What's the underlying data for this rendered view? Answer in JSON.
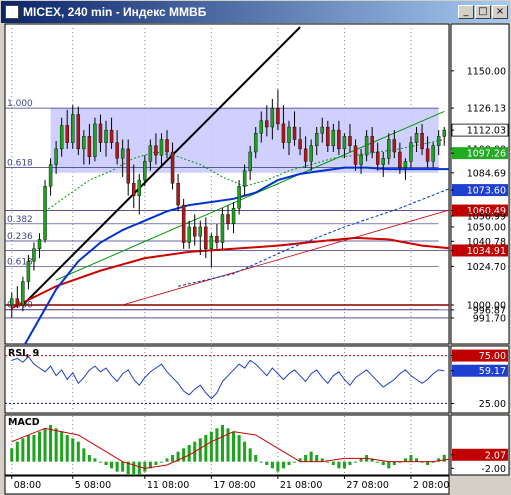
{
  "window": {
    "title": "MICEX, 240 min - Индекс ММВБ",
    "min_glyph": "_",
    "max_glyph": "□",
    "close_glyph": "×"
  },
  "colors": {
    "bull": "#1fa31f",
    "bear": "#b01919",
    "fib_zone": "#c8c8ff",
    "ma_blue": "#0033cc",
    "ma_red": "#cc0000",
    "trend_black": "#000000",
    "trend_green": "#009900"
  },
  "chart_data": [
    {
      "name": "price",
      "type": "candlestick",
      "ylim": [
        975,
        1180
      ],
      "y_ticks": [
        {
          "value": 1150.0,
          "label": "1150.00",
          "style": "plain"
        },
        {
          "value": 1126.13,
          "label": "1126.13",
          "style": "plain"
        },
        {
          "value": 1112.03,
          "label": "1112.03",
          "style": "white"
        },
        {
          "value": 1100.0,
          "label": "1100.00",
          "style": "plain"
        },
        {
          "value": 1097.26,
          "label": "1097.26",
          "style": "green"
        },
        {
          "value": 1084.69,
          "label": "1084.69",
          "style": "plain"
        },
        {
          "value": 1073.6,
          "label": "1073.60",
          "style": "blue"
        },
        {
          "value": 1060.49,
          "label": "1060.49",
          "style": "red"
        },
        {
          "value": 1056.99,
          "label": "1056.99",
          "style": "plain"
        },
        {
          "value": 1050.0,
          "label": "1050.00",
          "style": "plain"
        },
        {
          "value": 1040.78,
          "label": "1040.78",
          "style": "plain"
        },
        {
          "value": 1034.91,
          "label": "1034.91",
          "style": "red"
        },
        {
          "value": 1024.7,
          "label": "1024.70",
          "style": "plain"
        },
        {
          "value": 1000.0,
          "label": "1000.00",
          "style": "plain"
        },
        {
          "value": 996.87,
          "label": "996.87",
          "style": "plain"
        },
        {
          "value": 991.7,
          "label": "991.70",
          "style": "plain"
        }
      ],
      "fib_levels": [
        {
          "label": "1.000",
          "value": 1126.13
        },
        {
          "label": "0.618",
          "value": 1088
        },
        {
          "label": "0.382",
          "value": 1052
        },
        {
          "label": "0.236",
          "value": 1041
        },
        {
          "label": "0.000",
          "value": 997
        },
        {
          "label": "0.618",
          "value": 1024.7
        }
      ],
      "fib_box": {
        "x_start": 7,
        "x_end": 77,
        "top": 1126.13,
        "bottom": 1084.69
      },
      "x_labels": [
        {
          "index": 0,
          "label": "08:00"
        },
        {
          "index": 11,
          "label": "5 08:00"
        },
        {
          "index": 24,
          "label": "11 08:00"
        },
        {
          "index": 36,
          "label": "17 08:00"
        },
        {
          "index": 48,
          "label": "21 08:00"
        },
        {
          "index": 60,
          "label": "27 08:00"
        },
        {
          "index": 72,
          "label": "2 08:00"
        }
      ],
      "ohlc": [
        [
          1000,
          1008,
          992,
          1004
        ],
        [
          1004,
          1012,
          998,
          1000
        ],
        [
          1000,
          1018,
          996,
          1015
        ],
        [
          1015,
          1032,
          1010,
          1028
        ],
        [
          1028,
          1040,
          1022,
          1036
        ],
        [
          1036,
          1046,
          1030,
          1042
        ],
        [
          1042,
          1080,
          1040,
          1076
        ],
        [
          1076,
          1094,
          1070,
          1090
        ],
        [
          1090,
          1105,
          1084,
          1100
        ],
        [
          1100,
          1120,
          1095,
          1115
        ],
        [
          1115,
          1125,
          1100,
          1104
        ],
        [
          1104,
          1128,
          1100,
          1122
        ],
        [
          1122,
          1127,
          1096,
          1100
        ],
        [
          1100,
          1112,
          1090,
          1108
        ],
        [
          1108,
          1116,
          1090,
          1095
        ],
        [
          1095,
          1120,
          1092,
          1116
        ],
        [
          1116,
          1122,
          1098,
          1104
        ],
        [
          1104,
          1118,
          1095,
          1112
        ],
        [
          1112,
          1120,
          1100,
          1104
        ],
        [
          1104,
          1112,
          1090,
          1094
        ],
        [
          1094,
          1106,
          1082,
          1100
        ],
        [
          1100,
          1106,
          1070,
          1078
        ],
        [
          1078,
          1090,
          1062,
          1070
        ],
        [
          1070,
          1084,
          1058,
          1080
        ],
        [
          1080,
          1096,
          1076,
          1092
        ],
        [
          1092,
          1106,
          1086,
          1102
        ],
        [
          1102,
          1110,
          1090,
          1096
        ],
        [
          1096,
          1110,
          1088,
          1106
        ],
        [
          1106,
          1112,
          1094,
          1098
        ],
        [
          1098,
          1104,
          1074,
          1078
        ],
        [
          1078,
          1084,
          1060,
          1064
        ],
        [
          1064,
          1068,
          1036,
          1040
        ],
        [
          1040,
          1054,
          1036,
          1050
        ],
        [
          1050,
          1058,
          1038,
          1044
        ],
        [
          1044,
          1054,
          1032,
          1050
        ],
        [
          1050,
          1056,
          1030,
          1036
        ],
        [
          1036,
          1046,
          1024,
          1044
        ],
        [
          1044,
          1052,
          1036,
          1040
        ],
        [
          1040,
          1062,
          1036,
          1058
        ],
        [
          1058,
          1064,
          1048,
          1052
        ],
        [
          1052,
          1066,
          1046,
          1062
        ],
        [
          1062,
          1080,
          1058,
          1076
        ],
        [
          1076,
          1090,
          1070,
          1086
        ],
        [
          1086,
          1102,
          1080,
          1098
        ],
        [
          1098,
          1114,
          1094,
          1110
        ],
        [
          1110,
          1124,
          1104,
          1118
        ],
        [
          1118,
          1128,
          1108,
          1114
        ],
        [
          1114,
          1132,
          1106,
          1126
        ],
        [
          1126,
          1138,
          1112,
          1116
        ],
        [
          1116,
          1128,
          1100,
          1104
        ],
        [
          1104,
          1118,
          1096,
          1114
        ],
        [
          1114,
          1124,
          1102,
          1106
        ],
        [
          1106,
          1114,
          1096,
          1100
        ],
        [
          1100,
          1108,
          1088,
          1092
        ],
        [
          1092,
          1106,
          1086,
          1102
        ],
        [
          1102,
          1114,
          1096,
          1110
        ],
        [
          1110,
          1120,
          1104,
          1114
        ],
        [
          1114,
          1118,
          1098,
          1102
        ],
        [
          1102,
          1116,
          1098,
          1112
        ],
        [
          1112,
          1118,
          1096,
          1100
        ],
        [
          1100,
          1110,
          1094,
          1108
        ],
        [
          1108,
          1116,
          1098,
          1102
        ],
        [
          1102,
          1106,
          1086,
          1090
        ],
        [
          1090,
          1100,
          1084,
          1096
        ],
        [
          1096,
          1112,
          1092,
          1108
        ],
        [
          1108,
          1114,
          1094,
          1098
        ],
        [
          1098,
          1104,
          1086,
          1090
        ],
        [
          1090,
          1098,
          1082,
          1094
        ],
        [
          1094,
          1110,
          1090,
          1106
        ],
        [
          1106,
          1112,
          1094,
          1098
        ],
        [
          1098,
          1104,
          1084,
          1088
        ],
        [
          1088,
          1094,
          1080,
          1092
        ],
        [
          1092,
          1108,
          1088,
          1104
        ],
        [
          1104,
          1114,
          1098,
          1110
        ],
        [
          1110,
          1116,
          1096,
          1100
        ],
        [
          1100,
          1108,
          1088,
          1092
        ],
        [
          1092,
          1104,
          1088,
          1102
        ],
        [
          1102,
          1112,
          1096,
          1108
        ],
        [
          1108,
          1114,
          1102,
          1112
        ]
      ],
      "ma_blue": [
        [
          0,
          960
        ],
        [
          4,
          985
        ],
        [
          8,
          1010
        ],
        [
          12,
          1028
        ],
        [
          16,
          1040
        ],
        [
          20,
          1048
        ],
        [
          24,
          1054
        ],
        [
          28,
          1060
        ],
        [
          32,
          1064
        ],
        [
          36,
          1066
        ],
        [
          40,
          1068
        ],
        [
          44,
          1072
        ],
        [
          48,
          1080
        ],
        [
          52,
          1084
        ],
        [
          56,
          1086
        ],
        [
          60,
          1088
        ],
        [
          64,
          1088
        ],
        [
          68,
          1087
        ],
        [
          72,
          1087
        ],
        [
          76,
          1087
        ],
        [
          80,
          1087
        ]
      ],
      "ma_red": [
        [
          0,
          998
        ],
        [
          8,
          1012
        ],
        [
          16,
          1022
        ],
        [
          24,
          1030
        ],
        [
          32,
          1034
        ],
        [
          40,
          1036
        ],
        [
          48,
          1038
        ],
        [
          56,
          1041
        ],
        [
          62,
          1043
        ],
        [
          68,
          1042
        ],
        [
          74,
          1038
        ],
        [
          80,
          1036
        ]
      ],
      "ma_green_dotted": [
        [
          6,
          1060
        ],
        [
          10,
          1070
        ],
        [
          14,
          1080
        ],
        [
          18,
          1086
        ],
        [
          22,
          1094
        ],
        [
          26,
          1098
        ],
        [
          30,
          1095
        ],
        [
          34,
          1090
        ],
        [
          38,
          1082
        ],
        [
          42,
          1076
        ],
        [
          46,
          1080
        ],
        [
          50,
          1086
        ],
        [
          54,
          1090
        ],
        [
          58,
          1094
        ],
        [
          62,
          1096
        ],
        [
          66,
          1098
        ],
        [
          70,
          1100
        ],
        [
          74,
          1103
        ],
        [
          78,
          1106
        ]
      ],
      "envelope_blue_dashed": [
        [
          30,
          1012
        ],
        [
          40,
          1020
        ],
        [
          50,
          1036
        ],
        [
          60,
          1050
        ],
        [
          70,
          1062
        ],
        [
          80,
          1076
        ]
      ],
      "trend_black": [
        [
          2,
          1000
        ],
        [
          52,
          1178
        ]
      ],
      "trend_green": [
        [
          8,
          1016
        ],
        [
          78,
          1124
        ]
      ],
      "trend_red_thin": [
        [
          20,
          1000
        ],
        [
          80,
          1062
        ]
      ]
    },
    {
      "name": "rsi",
      "type": "line",
      "label": "RSI, 9",
      "ylim": [
        15,
        85
      ],
      "y_ticks": [
        {
          "value": 75.0,
          "label": "75.00",
          "style": "red"
        },
        {
          "value": 59.17,
          "label": "59.17",
          "style": "blue"
        },
        {
          "value": 25.0,
          "label": "25.00",
          "style": "plain"
        }
      ],
      "values": [
        70,
        72,
        68,
        74,
        66,
        62,
        58,
        64,
        54,
        60,
        50,
        57,
        46,
        52,
        60,
        64,
        58,
        62,
        54,
        48,
        56,
        60,
        50,
        44,
        52,
        58,
        62,
        66,
        58,
        52,
        46,
        38,
        34,
        40,
        44,
        36,
        30,
        36,
        48,
        54,
        60,
        66,
        62,
        70,
        66,
        60,
        54,
        62,
        56,
        50,
        56,
        60,
        54,
        48,
        56,
        60,
        52,
        46,
        54,
        58,
        50,
        44,
        52,
        56,
        60,
        54,
        48,
        42,
        46,
        50,
        56,
        60,
        54,
        50,
        46,
        50,
        56,
        60,
        59.17
      ]
    },
    {
      "name": "macd",
      "type": "bar",
      "label": "MACD",
      "ylim": [
        -4,
        14
      ],
      "y_ticks": [
        {
          "value": 2.07,
          "label": "2.07",
          "style": "red"
        },
        {
          "value": -2.0,
          "label": "-2.00",
          "style": "plain"
        }
      ],
      "values": [
        4,
        6,
        7,
        8,
        8,
        9,
        10,
        11,
        10,
        9,
        8,
        7,
        6,
        4,
        2,
        1,
        0,
        -1,
        -2,
        -3,
        -3,
        -4,
        -4,
        -4,
        -3,
        -2,
        -1,
        0,
        1,
        2,
        3,
        4,
        5,
        6,
        7,
        8,
        9,
        10,
        11,
        10,
        9,
        8,
        6,
        4,
        2,
        0,
        -1,
        -2,
        -3,
        -2,
        -1,
        0,
        1,
        2,
        3,
        2,
        1,
        0,
        -1,
        -2,
        -2,
        -1,
        0,
        1,
        2,
        1,
        0,
        -1,
        -2,
        -1,
        0,
        1,
        2,
        1,
        0,
        -1,
        0,
        1,
        2.07
      ],
      "signal": [
        [
          0,
          6
        ],
        [
          6,
          10
        ],
        [
          12,
          8
        ],
        [
          16,
          4
        ],
        [
          20,
          0
        ],
        [
          24,
          -2
        ],
        [
          28,
          -1
        ],
        [
          32,
          2
        ],
        [
          36,
          6
        ],
        [
          40,
          9
        ],
        [
          44,
          8
        ],
        [
          48,
          4
        ],
        [
          52,
          0
        ],
        [
          56,
          0
        ],
        [
          60,
          1
        ],
        [
          64,
          1
        ],
        [
          68,
          0
        ],
        [
          72,
          0
        ],
        [
          76,
          0
        ],
        [
          80,
          1
        ]
      ]
    }
  ]
}
